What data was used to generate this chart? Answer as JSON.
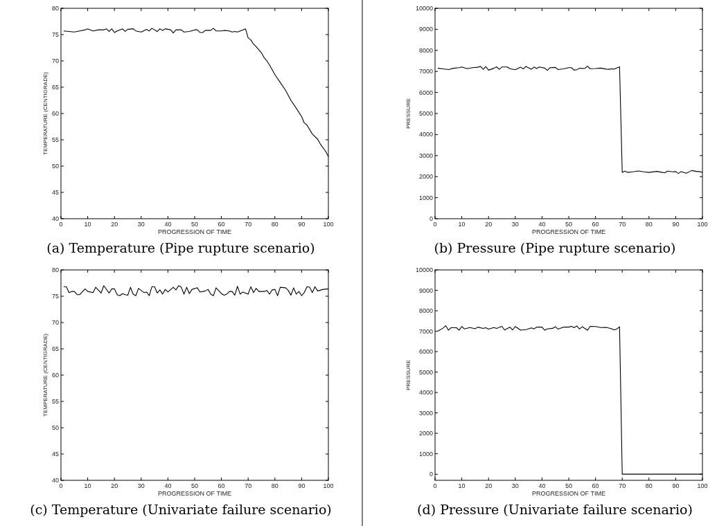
{
  "chart_data": [
    {
      "type": "line",
      "title": "(a) Temperature (Pipe rupture scenario)",
      "xlabel": "PROGRESSION OF TIME",
      "ylabel": "TEMPERATURE (CENTIGRADE)",
      "xlim": [
        0,
        100
      ],
      "xticks": [
        0,
        10,
        20,
        30,
        40,
        50,
        60,
        70,
        80,
        90,
        100
      ],
      "ylim": [
        40,
        80
      ],
      "yticks": [
        40,
        45,
        50,
        55,
        60,
        65,
        70,
        75,
        80
      ],
      "series": [
        {
          "color": "#000000",
          "x": [
            1,
            3,
            5,
            7,
            9,
            10,
            12,
            14,
            16,
            17,
            18,
            19,
            20,
            21,
            23,
            24,
            25,
            27,
            28,
            30,
            32,
            33,
            34,
            36,
            37,
            38,
            39,
            41,
            42,
            43,
            45,
            46,
            48,
            50,
            51,
            52,
            53,
            54,
            56,
            57,
            58,
            60,
            61,
            63,
            64,
            65,
            66,
            68,
            69,
            70,
            71,
            72,
            73,
            75,
            76,
            77,
            78,
            80,
            82,
            84,
            86,
            88,
            90,
            91,
            92,
            94,
            96,
            97,
            99,
            100
          ],
          "values": [
            75.7,
            75.6,
            75.5,
            75.7,
            75.9,
            76.1,
            75.7,
            75.9,
            75.9,
            76.1,
            75.6,
            76.1,
            75.4,
            75.7,
            76.1,
            75.6,
            76,
            76.1,
            75.7,
            75.5,
            76,
            75.7,
            76.2,
            75.6,
            76.1,
            75.8,
            76.1,
            75.9,
            75.3,
            75.9,
            75.9,
            75.5,
            75.6,
            75.9,
            75.9,
            75.4,
            75.4,
            75.8,
            75.8,
            76.2,
            75.7,
            75.7,
            75.8,
            75.7,
            75.5,
            75.6,
            75.5,
            75.9,
            76.1,
            74.4,
            74,
            73.2,
            72.7,
            71.5,
            70.6,
            70,
            69.2,
            67.4,
            65.9,
            64.4,
            62.5,
            61,
            59.4,
            58.2,
            57.8,
            56.1,
            55.1,
            54.2,
            52.8,
            51.8
          ]
        }
      ]
    },
    {
      "type": "line",
      "title": "(b) Pressure (Pipe rupture scenario)",
      "xlabel": "PROGRESSION OF TIME",
      "ylabel": "PRESSURE",
      "xlim": [
        0,
        100
      ],
      "xticks": [
        0,
        10,
        20,
        30,
        40,
        50,
        60,
        70,
        80,
        90,
        100
      ],
      "ylim": [
        0,
        10000
      ],
      "yticks": [
        0,
        1000,
        2000,
        3000,
        4000,
        5000,
        6000,
        7000,
        8000,
        9000,
        10000
      ],
      "series": [
        {
          "color": "#000000",
          "x": [
            1,
            3,
            5,
            7,
            9,
            10,
            12,
            14,
            16,
            17,
            18,
            19,
            20,
            22,
            23,
            24,
            25,
            27,
            28,
            30,
            32,
            33,
            34,
            36,
            37,
            38,
            39,
            41,
            42,
            43,
            45,
            46,
            48,
            50,
            51,
            52,
            53,
            54,
            56,
            57,
            58,
            60,
            62,
            64,
            65,
            66,
            67,
            69,
            70,
            71,
            72,
            74,
            76,
            78,
            80,
            83,
            85,
            86,
            87,
            89,
            90,
            91,
            92,
            94,
            96,
            98,
            99,
            100
          ],
          "values": [
            7150,
            7120,
            7090,
            7150,
            7180,
            7210,
            7130,
            7180,
            7200,
            7240,
            7100,
            7230,
            7060,
            7150,
            7220,
            7100,
            7210,
            7210,
            7130,
            7080,
            7200,
            7120,
            7240,
            7100,
            7210,
            7140,
            7210,
            7160,
            7050,
            7180,
            7190,
            7090,
            7120,
            7180,
            7180,
            7060,
            7080,
            7150,
            7140,
            7250,
            7130,
            7140,
            7160,
            7110,
            7100,
            7120,
            7110,
            7220,
            2200,
            2260,
            2200,
            2230,
            2270,
            2230,
            2200,
            2250,
            2200,
            2190,
            2260,
            2230,
            2240,
            2150,
            2240,
            2160,
            2290,
            2240,
            2240,
            2200
          ]
        }
      ]
    },
    {
      "type": "line",
      "title": "(c) Temperature (Univariate failure scenario)",
      "xlabel": "PROGRESSION OF TIME",
      "ylabel": "TEMPERATURE (CENTIGRADE)",
      "xlim": [
        0,
        100
      ],
      "xticks": [
        0,
        10,
        20,
        30,
        40,
        50,
        60,
        70,
        80,
        90,
        100
      ],
      "ylim": [
        40,
        80
      ],
      "yticks": [
        40,
        45,
        50,
        55,
        60,
        65,
        70,
        75,
        80
      ],
      "series": [
        {
          "color": "#000000",
          "x": [
            1,
            2,
            3,
            4,
            5,
            6,
            7,
            9,
            10,
            12,
            13,
            15,
            16,
            18,
            19,
            20,
            21,
            22,
            23,
            24,
            25,
            26,
            27,
            28,
            29,
            31,
            32,
            33,
            34,
            35,
            36,
            37,
            38,
            39,
            40,
            42,
            43,
            44,
            45,
            46,
            47,
            48,
            49,
            51,
            52,
            54,
            55,
            56,
            57,
            58,
            60,
            61,
            62,
            63,
            64,
            65,
            66,
            67,
            68,
            70,
            71,
            72,
            73,
            74,
            76,
            77,
            78,
            79,
            80,
            81,
            82,
            84,
            85,
            86,
            87,
            88,
            89,
            90,
            91,
            92,
            93,
            94,
            95,
            96,
            98,
            100
          ],
          "values": [
            76.8,
            76.8,
            75.7,
            75.9,
            75.9,
            75.3,
            75.3,
            76.4,
            75.9,
            75.7,
            76.7,
            75.6,
            77,
            75.6,
            76.4,
            76.4,
            75.3,
            75.1,
            75.5,
            75.3,
            75.2,
            76.7,
            75.4,
            75.1,
            76.5,
            75.7,
            75.8,
            75.1,
            76.8,
            76.8,
            75.6,
            76.2,
            75.4,
            76.3,
            75.8,
            76.7,
            76.2,
            77,
            76.7,
            75.4,
            76.7,
            75.5,
            76.3,
            76.6,
            75.8,
            76,
            76.3,
            75.4,
            75.1,
            76.6,
            75.5,
            75.2,
            75.4,
            75.9,
            75.9,
            75.2,
            76.9,
            75.4,
            75.8,
            75.4,
            76.8,
            75.7,
            76.5,
            75.9,
            75.9,
            76.1,
            75.4,
            76.2,
            76.3,
            75.1,
            76.7,
            76.6,
            76.1,
            75.2,
            76.6,
            75.4,
            75.9,
            75.1,
            75.7,
            76.8,
            76.7,
            75.7,
            76.8,
            76,
            76.3,
            76.4
          ]
        }
      ]
    },
    {
      "type": "line",
      "title": "(d) Pressure (Univariate failure scenario)",
      "xlabel": "PROGRESSION OF TIME",
      "ylabel": "PRESSURE",
      "xlim": [
        0,
        100
      ],
      "xticks": [
        0,
        10,
        20,
        30,
        40,
        50,
        60,
        70,
        80,
        90,
        100
      ],
      "ylim": [
        -300,
        10000
      ],
      "yticks": [
        0,
        1000,
        2000,
        3000,
        4000,
        5000,
        6000,
        7000,
        8000,
        9000,
        10000
      ],
      "series": [
        {
          "color": "#000000",
          "x": [
            1,
            3,
            4,
            5,
            6,
            8,
            9,
            10,
            11,
            13,
            15,
            16,
            18,
            19,
            20,
            22,
            23,
            25,
            26,
            28,
            29,
            30,
            32,
            34,
            36,
            37,
            38,
            40,
            41,
            42,
            44,
            45,
            46,
            48,
            50,
            51,
            52,
            53,
            54,
            55,
            57,
            58,
            60,
            62,
            64,
            66,
            67,
            68,
            69,
            70,
            100
          ],
          "values": [
            7000,
            7150,
            7270,
            7050,
            7170,
            7170,
            7050,
            7230,
            7110,
            7180,
            7120,
            7200,
            7140,
            7170,
            7100,
            7180,
            7140,
            7240,
            7060,
            7200,
            7060,
            7230,
            7050,
            7080,
            7160,
            7110,
            7200,
            7200,
            7050,
            7110,
            7140,
            7220,
            7100,
            7200,
            7200,
            7240,
            7170,
            7260,
            7110,
            7220,
            7050,
            7240,
            7230,
            7180,
            7190,
            7120,
            7060,
            7110,
            7220,
            0,
            0
          ]
        }
      ]
    }
  ]
}
